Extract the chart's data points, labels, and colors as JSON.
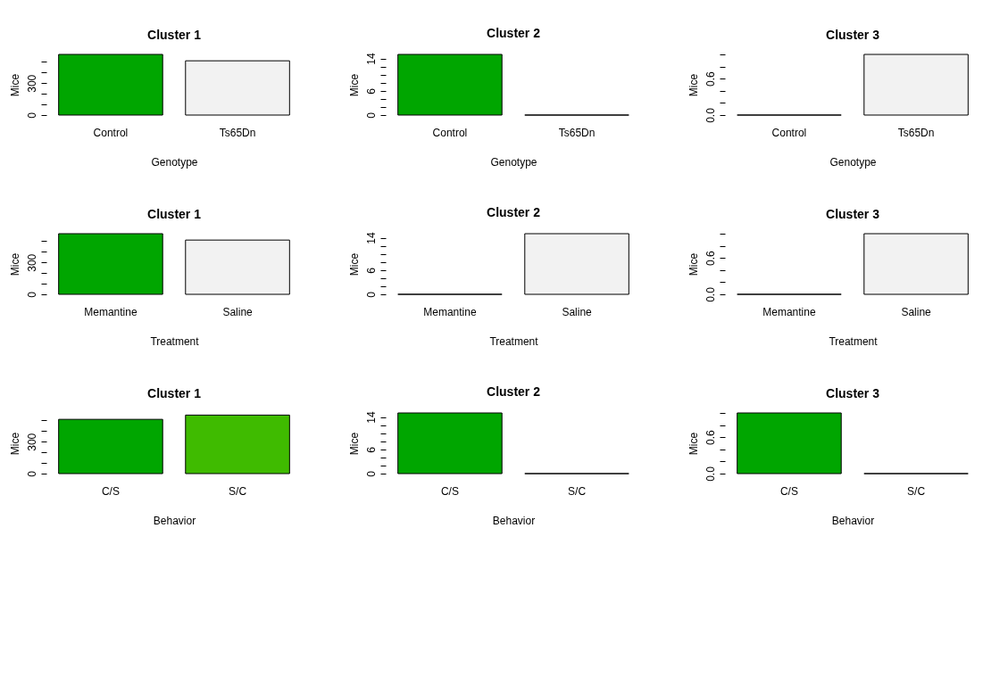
{
  "chart_data": [
    {
      "type": "bar",
      "title": "Cluster 1",
      "xlabel": "Genotype",
      "ylabel": "Mice",
      "categories": [
        "Control",
        "Ts65Dn"
      ],
      "values": [
        570,
        510
      ],
      "colors": [
        "#00a600",
        "#f2f2f2"
      ],
      "ylim": [
        0,
        570
      ],
      "yticks": [
        0,
        {
          "value": 100,
          "label": null
        },
        {
          "value": 200,
          "label": null
        },
        300,
        {
          "value": 400,
          "label": null
        },
        {
          "value": 500,
          "label": null
        }
      ]
    },
    {
      "type": "bar",
      "title": "Cluster 2",
      "xlabel": "Genotype",
      "ylabel": "Mice",
      "categories": [
        "Control",
        "Ts65Dn"
      ],
      "values": [
        15,
        0
      ],
      "colors": [
        "#00a600",
        "#f2f2f2"
      ],
      "ylim": [
        0,
        15
      ],
      "yticks": [
        0,
        {
          "value": 2,
          "label": null
        },
        {
          "value": 4,
          "label": null
        },
        6,
        {
          "value": 8,
          "label": null
        },
        {
          "value": 10,
          "label": null
        },
        {
          "value": 12,
          "label": null
        },
        14
      ]
    },
    {
      "type": "bar",
      "title": "Cluster 3",
      "xlabel": "Genotype",
      "ylabel": "Mice",
      "categories": [
        "Control",
        "Ts65Dn"
      ],
      "values": [
        0,
        1
      ],
      "colors": [
        "#00a600",
        "#f2f2f2"
      ],
      "ylim": [
        0,
        1
      ],
      "yticks": [
        {
          "value": 0,
          "label": "0.0"
        },
        {
          "value": 0.2,
          "label": null
        },
        {
          "value": 0.4,
          "label": null
        },
        0.6,
        {
          "value": 0.8,
          "label": null
        },
        {
          "value": 1,
          "label": null
        }
      ]
    },
    {
      "type": "bar",
      "title": "Cluster 1",
      "xlabel": "Treatment",
      "ylabel": "Mice",
      "categories": [
        "Memantine",
        "Saline"
      ],
      "values": [
        570,
        510
      ],
      "colors": [
        "#00a600",
        "#f2f2f2"
      ],
      "ylim": [
        0,
        570
      ],
      "yticks": [
        0,
        {
          "value": 100,
          "label": null
        },
        {
          "value": 200,
          "label": null
        },
        300,
        {
          "value": 400,
          "label": null
        },
        {
          "value": 500,
          "label": null
        }
      ]
    },
    {
      "type": "bar",
      "title": "Cluster 2",
      "xlabel": "Treatment",
      "ylabel": "Mice",
      "categories": [
        "Memantine",
        "Saline"
      ],
      "values": [
        0,
        15
      ],
      "colors": [
        "#00a600",
        "#f2f2f2"
      ],
      "ylim": [
        0,
        15
      ],
      "yticks": [
        0,
        {
          "value": 2,
          "label": null
        },
        {
          "value": 4,
          "label": null
        },
        6,
        {
          "value": 8,
          "label": null
        },
        {
          "value": 10,
          "label": null
        },
        {
          "value": 12,
          "label": null
        },
        14
      ]
    },
    {
      "type": "bar",
      "title": "Cluster 3",
      "xlabel": "Treatment",
      "ylabel": "Mice",
      "categories": [
        "Memantine",
        "Saline"
      ],
      "values": [
        0,
        1
      ],
      "colors": [
        "#00a600",
        "#f2f2f2"
      ],
      "ylim": [
        0,
        1
      ],
      "yticks": [
        {
          "value": 0,
          "label": "0.0"
        },
        {
          "value": 0.2,
          "label": null
        },
        {
          "value": 0.4,
          "label": null
        },
        0.6,
        {
          "value": 0.8,
          "label": null
        },
        {
          "value": 1,
          "label": null
        }
      ]
    },
    {
      "type": "bar",
      "title": "Cluster 1",
      "xlabel": "Behavior",
      "ylabel": "Mice",
      "categories": [
        "C/S",
        "S/C"
      ],
      "values": [
        510,
        550
      ],
      "colors": [
        "#00a600",
        "#3fbb00"
      ],
      "ylim": [
        0,
        570
      ],
      "yticks": [
        0,
        {
          "value": 100,
          "label": null
        },
        {
          "value": 200,
          "label": null
        },
        300,
        {
          "value": 400,
          "label": null
        },
        {
          "value": 500,
          "label": null
        }
      ]
    },
    {
      "type": "bar",
      "title": "Cluster 2",
      "xlabel": "Behavior",
      "ylabel": "Mice",
      "categories": [
        "C/S",
        "S/C"
      ],
      "values": [
        15,
        0
      ],
      "colors": [
        "#00a600",
        "#3fbb00"
      ],
      "ylim": [
        0,
        15
      ],
      "yticks": [
        0,
        {
          "value": 2,
          "label": null
        },
        {
          "value": 4,
          "label": null
        },
        6,
        {
          "value": 8,
          "label": null
        },
        {
          "value": 10,
          "label": null
        },
        {
          "value": 12,
          "label": null
        },
        14
      ]
    },
    {
      "type": "bar",
      "title": "Cluster 3",
      "xlabel": "Behavior",
      "ylabel": "Mice",
      "categories": [
        "C/S",
        "S/C"
      ],
      "values": [
        1,
        0
      ],
      "colors": [
        "#00a600",
        "#3fbb00"
      ],
      "ylim": [
        0,
        1
      ],
      "yticks": [
        {
          "value": 0,
          "label": "0.0"
        },
        {
          "value": 0.2,
          "label": null
        },
        {
          "value": 0.4,
          "label": null
        },
        0.6,
        {
          "value": 0.8,
          "label": null
        },
        {
          "value": 1,
          "label": null
        }
      ]
    }
  ]
}
